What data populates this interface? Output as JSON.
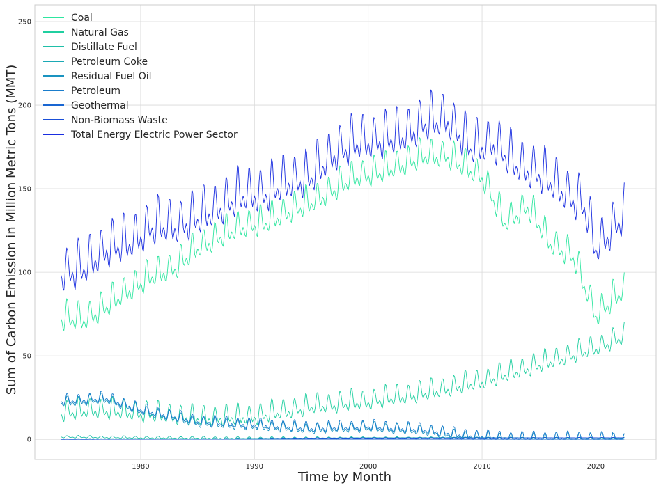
{
  "chart_data": {
    "type": "line",
    "title": "",
    "xlabel": "Time by Month",
    "ylabel": "Sum of Carbon Emission in Million Metric Tons (MMT)",
    "xlim": [
      1970.7,
      2025.3
    ],
    "ylim": [
      -12,
      260
    ],
    "xticks": [
      1980,
      1990,
      2000,
      2010,
      2020
    ],
    "yticks": [
      0,
      50,
      100,
      150,
      200,
      250
    ],
    "grid": true,
    "legend_position": "top-left",
    "series": [
      {
        "name": "Coal",
        "color": "#2ee6a0",
        "x": [
          1973,
          1975,
          1977,
          1979,
          1981,
          1983,
          1985,
          1987,
          1989,
          1991,
          1993,
          1995,
          1997,
          1999,
          2001,
          2003,
          2005,
          2007,
          2008,
          2010,
          2012,
          2014,
          2016,
          2018,
          2020,
          2022.5
        ],
        "y": [
          73,
          72,
          80,
          90,
          98,
          103,
          115,
          122,
          128,
          130,
          137,
          142,
          150,
          158,
          160,
          165,
          170,
          170,
          165,
          158,
          130,
          140,
          118,
          110,
          75,
          90
        ],
        "amp": 14
      },
      {
        "name": "Natural Gas",
        "color": "#20cfa0",
        "x": [
          1973,
          1976,
          1980,
          1985,
          1990,
          1995,
          2000,
          2005,
          2010,
          2015,
          2020,
          2022.5
        ],
        "y": [
          16,
          18,
          16,
          13,
          14,
          20,
          23,
          28,
          35,
          45,
          55,
          62
        ],
        "amp": 10
      },
      {
        "name": "Distillate Fuel",
        "color": "#1fbfa8",
        "x": [
          1973,
          1980,
          1990,
          2000,
          2010,
          2022.5
        ],
        "y": [
          1.5,
          1.0,
          0.6,
          0.6,
          0.4,
          0.3
        ],
        "amp": 1.2
      },
      {
        "name": "Petroleum Coke",
        "color": "#1ba9b5",
        "x": [
          1973,
          1985,
          1990,
          2000,
          2010,
          2022.5
        ],
        "y": [
          0.2,
          0.3,
          0.6,
          1.0,
          1.1,
          0.8
        ],
        "amp": 0.3
      },
      {
        "name": "Residual Fuel Oil",
        "color": "#1a93c0",
        "x": [
          1973,
          1977,
          1980,
          1985,
          1990,
          1995,
          2000,
          2005,
          2008,
          2012,
          2022.5
        ],
        "y": [
          22,
          24,
          17,
          10,
          8,
          6,
          7,
          5,
          2,
          0.5,
          0.3
        ],
        "amp": 5
      },
      {
        "name": "Petroleum",
        "color": "#1a7dcc",
        "x": [
          1973,
          1977,
          1980,
          1985,
          1990,
          1995,
          2000,
          2005,
          2008,
          2012,
          2022.5
        ],
        "y": [
          23,
          25,
          18,
          11,
          9,
          7,
          8,
          6,
          3,
          1,
          0.6
        ],
        "amp": 5
      },
      {
        "name": "Geothermal",
        "color": "#1966d2",
        "x": [
          1973,
          1990,
          2022.5
        ],
        "y": [
          0.0,
          0.1,
          0.1
        ],
        "amp": 0
      },
      {
        "name": "Non-Biomass Waste",
        "color": "#1a4fd8",
        "x": [
          1973,
          1989,
          1995,
          2022.5
        ],
        "y": [
          0,
          0.3,
          0.7,
          1.0
        ],
        "amp": 0.2
      },
      {
        "name": "Total Energy Electric Power Sector",
        "color": "#1a2ee0",
        "x": [
          1973,
          1975,
          1977,
          1979,
          1981,
          1983,
          1985,
          1987,
          1989,
          1991,
          1993,
          1995,
          1997,
          1999,
          2001,
          2003,
          2005,
          2007,
          2009,
          2011,
          2013,
          2015,
          2017,
          2019,
          2020,
          2022.5
        ],
        "y": [
          100,
          103,
          115,
          118,
          128,
          128,
          133,
          140,
          147,
          148,
          155,
          158,
          172,
          178,
          180,
          182,
          190,
          192,
          175,
          178,
          165,
          160,
          150,
          140,
          115,
          135
        ],
        "amp": 22
      }
    ]
  }
}
